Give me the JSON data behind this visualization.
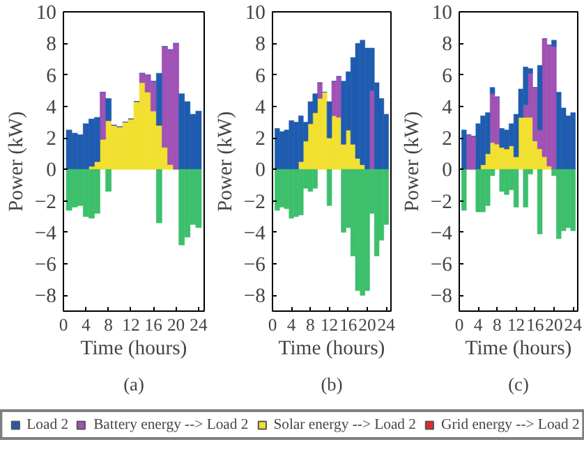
{
  "chart_data": [
    {
      "type": "bar",
      "stacked": true,
      "xlabel": "Time (hours)",
      "ylabel": "Power (kW)",
      "annotations": [
        "(a)"
      ],
      "x": [
        1,
        2,
        3,
        4,
        5,
        6,
        7,
        8,
        9,
        10,
        11,
        12,
        13,
        14,
        15,
        16,
        17,
        18,
        19,
        20,
        21,
        22,
        23,
        24
      ],
      "xlim": [
        0,
        25
      ],
      "xticks": [
        0,
        4,
        8,
        12,
        16,
        20,
        24
      ],
      "ylim": [
        -9,
        10
      ],
      "yticks": [
        -8,
        -6,
        -4,
        -2,
        0,
        2,
        4,
        6,
        8,
        10
      ],
      "legend": "bottom",
      "grid": false,
      "series": [
        {
          "name": "Solar energy --> Load 2",
          "color": "#f2e030",
          "values": [
            0,
            0,
            0,
            null,
            0.2,
            0.5,
            1.9,
            3.1,
            2.8,
            2.7,
            3.0,
            3.2,
            4.3,
            5.5,
            4.9,
            3.7,
            2.8,
            1.4,
            0.3,
            0,
            0,
            0,
            0,
            0
          ]
        },
        {
          "name": "Battery energy --> Load 2",
          "color": "#a052b5",
          "values": [
            0,
            0,
            0,
            0,
            0,
            0,
            3.0,
            0,
            0,
            0,
            0,
            0,
            0,
            0.6,
            1.1,
            1.9,
            0,
            6.4,
            7.3,
            8.0,
            0,
            0,
            0,
            0
          ]
        },
        {
          "name": "Grid energy --> Load 2",
          "color": "#e8242a",
          "values": [
            null,
            null,
            null,
            null,
            null,
            null,
            null,
            null,
            null,
            null,
            null,
            null,
            null,
            null,
            null,
            null,
            null,
            null,
            null,
            null,
            null,
            null,
            null,
            null
          ]
        },
        {
          "name": "Load 2",
          "color": "#1f5cb0",
          "values": [
            2.5,
            2.3,
            2.2,
            2.9,
            3.0,
            2.8,
            0,
            1.4,
            0,
            0,
            0,
            0,
            0,
            0,
            0,
            0,
            3.3,
            0,
            0,
            0,
            4.8,
            4.3,
            3.5,
            3.7
          ]
        },
        {
          "color": "#3dbf6c",
          "values": [
            -2.6,
            -2.4,
            -2.3,
            -3.0,
            -3.1,
            -2.8,
            null,
            -1.4,
            null,
            null,
            null,
            null,
            null,
            null,
            null,
            null,
            -3.4,
            null,
            null,
            null,
            -4.8,
            -4.3,
            -3.5,
            -3.7
          ]
        }
      ]
    },
    {
      "type": "bar",
      "stacked": true,
      "xlabel": "Time (hours)",
      "ylabel": "Power (kW)",
      "annotations": [
        "(b)"
      ],
      "x": [
        1,
        2,
        3,
        4,
        5,
        6,
        7,
        8,
        9,
        10,
        11,
        12,
        13,
        14,
        15,
        16,
        17,
        18,
        19,
        20,
        21,
        22,
        23,
        24
      ],
      "xlim": [
        0,
        25
      ],
      "xticks": [
        0,
        4,
        8,
        12,
        16,
        20,
        24
      ],
      "ylim": [
        -9,
        10
      ],
      "yticks": [
        -8,
        -6,
        -4,
        -2,
        0,
        2,
        4,
        6,
        8,
        10
      ],
      "grid": false,
      "series": [
        {
          "color": "#f2e030",
          "values": [
            0,
            0,
            0,
            0,
            null,
            0.5,
            1.8,
            2.9,
            3.6,
            4.5,
            4.9,
            2.0,
            3.4,
            3.3,
            1.6,
            2.5,
            1.6,
            0.7,
            0.3,
            null,
            0,
            0,
            0,
            0
          ]
        },
        {
          "color": "#a052b5",
          "values": [
            0,
            0,
            0,
            0,
            0,
            0,
            0,
            0,
            0,
            1.0,
            0,
            0,
            2.2,
            2.6,
            0,
            0,
            0,
            0,
            0,
            0,
            5.0,
            0,
            0,
            0
          ]
        },
        {
          "color": "#e8242a",
          "values": [
            null,
            null,
            null,
            null,
            null,
            null,
            null,
            null,
            null,
            null,
            null,
            null,
            null,
            null,
            null,
            null,
            null,
            null,
            null,
            null,
            null,
            null,
            null,
            null
          ]
        },
        {
          "color": "#1f5cb0",
          "values": [
            2.6,
            2.4,
            2.5,
            3.1,
            3.0,
            2.9,
            1.2,
            1.4,
            1.2,
            0,
            0,
            2.3,
            0,
            0,
            4.0,
            3.7,
            5.5,
            7.3,
            7.9,
            7.7,
            2.7,
            5.5,
            4.5,
            3.5
          ]
        },
        {
          "color": "#3dbf6c",
          "values": [
            -2.6,
            -2.4,
            -2.5,
            -3.1,
            -3.0,
            -2.9,
            -1.2,
            -1.4,
            -1.2,
            null,
            null,
            -2.3,
            null,
            null,
            -4.0,
            -3.7,
            -5.5,
            -7.7,
            -8.0,
            -7.7,
            -2.8,
            -5.5,
            -4.5,
            -3.5
          ]
        }
      ]
    },
    {
      "type": "bar",
      "stacked": true,
      "xlabel": "Time (hours)",
      "ylabel": "Power (kW)",
      "annotations": [
        "(c)"
      ],
      "x": [
        1,
        2,
        3,
        4,
        5,
        6,
        7,
        8,
        9,
        10,
        11,
        12,
        13,
        14,
        15,
        16,
        17,
        18,
        19,
        20,
        21,
        22,
        23,
        24
      ],
      "xlim": [
        0,
        25
      ],
      "xticks": [
        0,
        4,
        8,
        12,
        16,
        20,
        24
      ],
      "ylim": [
        -9,
        10
      ],
      "yticks": [
        -8,
        -6,
        -4,
        -2,
        0,
        2,
        4,
        6,
        8,
        10
      ],
      "grid": false,
      "series": [
        {
          "color": "#f2e030",
          "values": [
            0,
            0,
            0,
            0,
            0.3,
            1.0,
            1.7,
            1.6,
            1.4,
            1.3,
            1.5,
            0.8,
            3.3,
            3.3,
            3.3,
            1.8,
            1.3,
            0.8,
            0.2,
            0,
            0,
            0,
            0,
            0
          ]
        },
        {
          "color": "#a052b5",
          "values": [
            0,
            2.2,
            2.1,
            0,
            0,
            0,
            3.1,
            3.0,
            0,
            0,
            0,
            0,
            0,
            0.8,
            2.8,
            3.4,
            1.2,
            7.5,
            7.7,
            7.8,
            0,
            0,
            0,
            0
          ]
        },
        {
          "color": "#e8242a",
          "values": [
            null,
            null,
            null,
            null,
            null,
            null,
            null,
            null,
            null,
            null,
            null,
            null,
            null,
            null,
            null,
            null,
            null,
            null,
            null,
            null,
            null,
            null,
            null,
            null
          ]
        },
        {
          "color": "#1f5cb0",
          "values": [
            2.5,
            0,
            0,
            2.9,
            3.1,
            2.6,
            0.4,
            0,
            1.2,
            1.2,
            1.4,
            2.7,
            1.8,
            2.4,
            0.3,
            0,
            4.1,
            0,
            0,
            0.4,
            4.9,
            3.9,
            3.4,
            3.6
          ]
        },
        {
          "color": "#3dbf6c",
          "values": [
            -2.6,
            null,
            null,
            -2.7,
            -2.7,
            -2.3,
            -0.4,
            null,
            -1.4,
            -1.6,
            -1.3,
            -2.4,
            null,
            -2.4,
            -0.3,
            null,
            -4.1,
            null,
            null,
            -0.4,
            -4.4,
            -3.9,
            -3.7,
            -3.9
          ]
        }
      ]
    }
  ]
}
